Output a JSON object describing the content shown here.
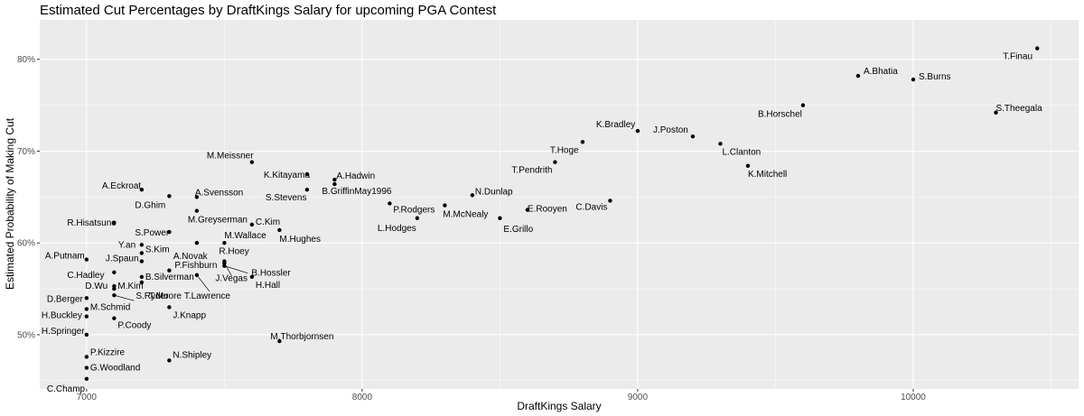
{
  "chart_data": {
    "type": "scatter",
    "title": "Estimated Cut Percentages by DraftKings Salary for upcoming PGA Contest",
    "xlabel": "DraftKings Salary",
    "ylabel": "Estimated Probability of Making Cut",
    "xlim": [
      6830,
      10600
    ],
    "ylim": [
      0.441,
      0.843
    ],
    "x_ticks": [
      7000,
      8000,
      9000,
      10000
    ],
    "x_tick_labels": [
      "7000",
      "8000",
      "9000",
      "10000"
    ],
    "y_ticks": [
      0.5,
      0.6,
      0.7,
      0.8
    ],
    "y_tick_labels": [
      "50%",
      "60%",
      "70%",
      "80%"
    ],
    "grid": true,
    "points": [
      {
        "label": "T.Finau",
        "x": 10450,
        "y": 0.812
      },
      {
        "label": "A.Bhatia",
        "x": 9800,
        "y": 0.782
      },
      {
        "label": "S.Burns",
        "x": 10000,
        "y": 0.778
      },
      {
        "label": "S.Theegala",
        "x": 10300,
        "y": 0.742
      },
      {
        "label": "B.Horschel",
        "x": 9600,
        "y": 0.75
      },
      {
        "label": "K.Bradley",
        "x": 9000,
        "y": 0.722
      },
      {
        "label": "J.Poston",
        "x": 9200,
        "y": 0.716
      },
      {
        "label": "T.Hoge",
        "x": 8800,
        "y": 0.71
      },
      {
        "label": "L.Clanton",
        "x": 9300,
        "y": 0.708
      },
      {
        "label": "T.Pendrith",
        "x": 8700,
        "y": 0.688
      },
      {
        "label": "K.Mitchell",
        "x": 9400,
        "y": 0.684
      },
      {
        "label": "M.Meissner",
        "x": 7600,
        "y": 0.688
      },
      {
        "label": "K.Kitayama",
        "x": 7800,
        "y": 0.675
      },
      {
        "label": "A.Hadwin",
        "x": 7900,
        "y": 0.669
      },
      {
        "label": "B.GriffinMay1996",
        "x": 7900,
        "y": 0.664
      },
      {
        "label": "S.Stevens",
        "x": 7800,
        "y": 0.658
      },
      {
        "label": "N.Dunlap",
        "x": 8400,
        "y": 0.652
      },
      {
        "label": "A.Eckroat",
        "x": 7200,
        "y": 0.658
      },
      {
        "label": "D.Ghim",
        "x": 7300,
        "y": 0.651
      },
      {
        "label": "A.Svensson",
        "x": 7400,
        "y": 0.65
      },
      {
        "label": "E.Rooyen",
        "x": 8600,
        "y": 0.636
      },
      {
        "label": "C.Davis",
        "x": 8900,
        "y": 0.646
      },
      {
        "label": "P.Rodgers",
        "x": 8100,
        "y": 0.643
      },
      {
        "label": "M.McNealy",
        "x": 8300,
        "y": 0.641
      },
      {
        "label": "L.Hodges",
        "x": 8200,
        "y": 0.627
      },
      {
        "label": "E.Grillo",
        "x": 8500,
        "y": 0.627
      },
      {
        "label": "M.Greyserman",
        "x": 7400,
        "y": 0.635
      },
      {
        "label": "C.Kim",
        "x": 7600,
        "y": 0.62
      },
      {
        "label": "M.Hughes",
        "x": 7700,
        "y": 0.614
      },
      {
        "label": "R.Hisatsune",
        "x": 7100,
        "y": 0.622
      },
      {
        "label": "S.Power",
        "x": 7300,
        "y": 0.612
      },
      {
        "label": "A.Novak",
        "x": 7400,
        "y": 0.6
      },
      {
        "label": "M.Wallace",
        "x": 7500,
        "y": 0.6
      },
      {
        "label": "Y.an",
        "x": 7200,
        "y": 0.598
      },
      {
        "label": "S.Kim",
        "x": 7200,
        "y": 0.589
      },
      {
        "label": "A.Putnam",
        "x": 7000,
        "y": 0.582
      },
      {
        "label": "J.Spaun",
        "x": 7200,
        "y": 0.58
      },
      {
        "label": "R.Hoey",
        "x": 7500,
        "y": 0.58
      },
      {
        "label": "B.Hossler",
        "x": 7500,
        "y": 0.575
      },
      {
        "label": "P.Fishburn",
        "x": 7300,
        "y": 0.57
      },
      {
        "label": "C.Hadley",
        "x": 7100,
        "y": 0.568
      },
      {
        "label": "B.Silverman",
        "x": 7200,
        "y": 0.563
      },
      {
        "label": "J.Vegas",
        "x": 7500,
        "y": 0.578
      },
      {
        "label": "H.Hall",
        "x": 7600,
        "y": 0.563
      },
      {
        "label": "T.Lawrence",
        "x": 7400,
        "y": 0.565
      },
      {
        "label": "T.Moore",
        "x": 7200,
        "y": 0.557
      },
      {
        "label": "D.Wu",
        "x": 7100,
        "y": 0.553
      },
      {
        "label": "D.Berger",
        "x": 7000,
        "y": 0.54
      },
      {
        "label": "M.Kim",
        "x": 7100,
        "y": 0.55
      },
      {
        "label": "M.Schmid",
        "x": 7000,
        "y": 0.528
      },
      {
        "label": "S.Ryder",
        "x": 7100,
        "y": 0.543
      },
      {
        "label": "J.Knapp",
        "x": 7300,
        "y": 0.53
      },
      {
        "label": "H.Buckley",
        "x": 7000,
        "y": 0.52
      },
      {
        "label": "P.Coody",
        "x": 7100,
        "y": 0.518
      },
      {
        "label": "H.Springer",
        "x": 7000,
        "y": 0.5
      },
      {
        "label": "M.Thorbjornsen",
        "x": 7700,
        "y": 0.493
      },
      {
        "label": "P.Kizzire",
        "x": 7000,
        "y": 0.476
      },
      {
        "label": "N.Shipley",
        "x": 7300,
        "y": 0.472
      },
      {
        "label": "G.Woodland",
        "x": 7000,
        "y": 0.464
      },
      {
        "label": "C.Champ",
        "x": 7000,
        "y": 0.452
      }
    ]
  }
}
